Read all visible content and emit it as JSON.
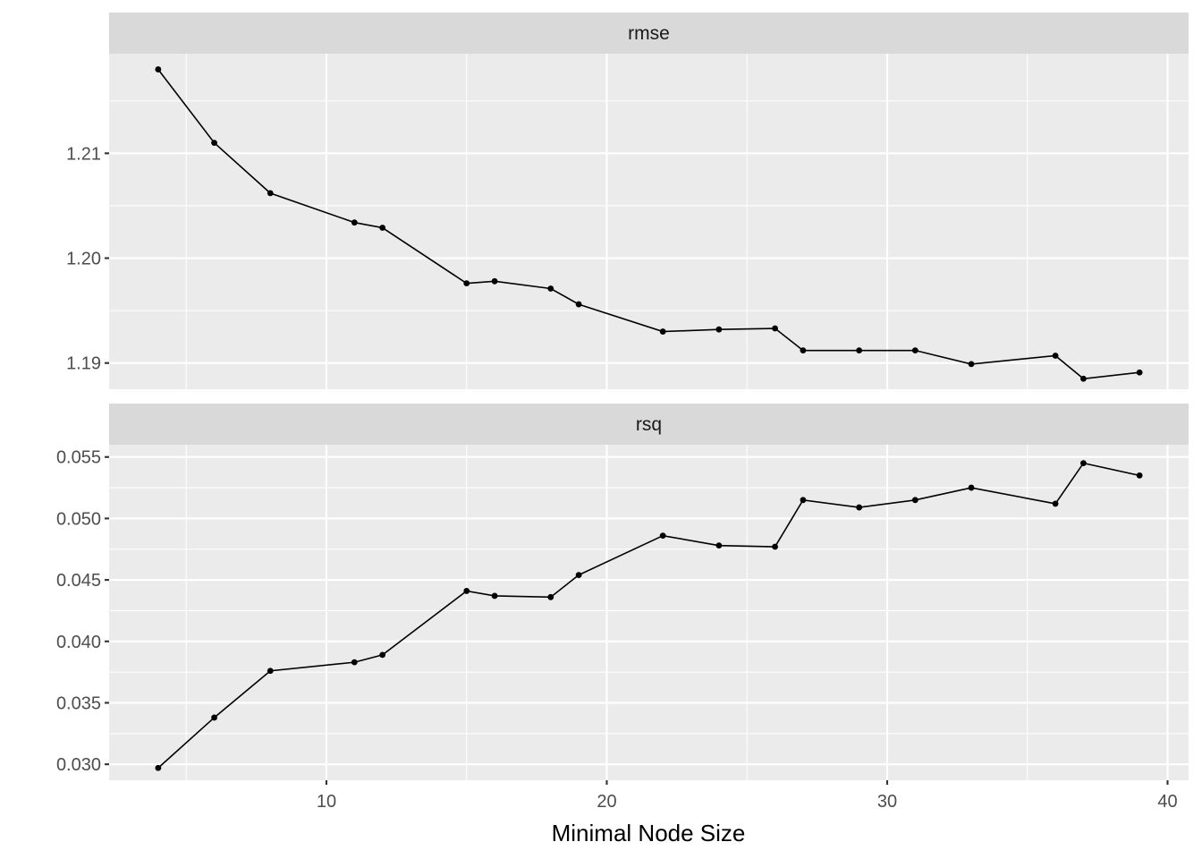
{
  "chart_data": [
    {
      "type": "line",
      "facet": "rmse",
      "x": [
        4,
        6,
        8,
        11,
        12,
        15,
        16,
        18,
        19,
        22,
        24,
        26,
        27,
        29,
        31,
        33,
        36,
        37,
        39
      ],
      "values": [
        1.218,
        1.211,
        1.2062,
        1.2034,
        1.2029,
        1.1976,
        1.1978,
        1.1971,
        1.1956,
        1.193,
        1.1932,
        1.1933,
        1.1912,
        1.1912,
        1.1912,
        1.1899,
        1.1907,
        1.1885,
        1.1891
      ],
      "y_ticks": [
        "1.19",
        "1.20",
        "1.21"
      ],
      "y_tick_values": [
        1.19,
        1.2,
        1.21
      ],
      "ylim": [
        1.1875,
        1.2195
      ],
      "grid": true
    },
    {
      "type": "line",
      "facet": "rsq",
      "x": [
        4,
        6,
        8,
        11,
        12,
        15,
        16,
        18,
        19,
        22,
        24,
        26,
        27,
        29,
        31,
        33,
        36,
        37,
        39
      ],
      "values": [
        0.0297,
        0.0338,
        0.0376,
        0.0383,
        0.0389,
        0.0441,
        0.0437,
        0.0436,
        0.0454,
        0.0486,
        0.0478,
        0.0477,
        0.0515,
        0.0509,
        0.0515,
        0.0525,
        0.0512,
        0.0545,
        0.0535
      ],
      "y_ticks": [
        "0.030",
        "0.035",
        "0.040",
        "0.045",
        "0.050",
        "0.055"
      ],
      "y_tick_values": [
        0.03,
        0.035,
        0.04,
        0.045,
        0.05,
        0.055
      ],
      "ylim": [
        0.0287,
        0.056
      ],
      "grid": true
    }
  ],
  "x_axis": {
    "title": "Minimal Node Size",
    "ticks": [
      "10",
      "20",
      "30",
      "40"
    ],
    "tick_values": [
      10,
      20,
      30,
      40
    ],
    "xlim": [
      2.25,
      40.75
    ]
  }
}
